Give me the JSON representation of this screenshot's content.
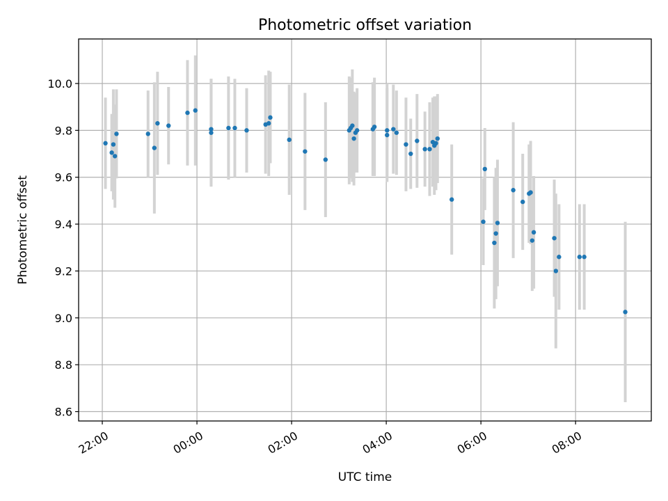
{
  "chart_data": {
    "type": "scatter",
    "title": "Photometric offset variation",
    "xlabel": "UTC time",
    "ylabel": "Photometric offset",
    "x_axis": {
      "kind": "time",
      "ticks": [
        "22:00",
        "00:00",
        "02:00",
        "04:00",
        "06:00",
        "08:00"
      ],
      "tick_hours": [
        22,
        24,
        26,
        28,
        30,
        32
      ],
      "xlim_hours": [
        21.5,
        33.6
      ]
    },
    "ylim": [
      8.56,
      10.19
    ],
    "yticks": [
      8.6,
      8.8,
      9.0,
      9.2,
      9.4,
      9.6,
      9.8,
      10.0
    ],
    "ytick_labels": [
      "8.6",
      "8.8",
      "9.0",
      "9.2",
      "9.4",
      "9.6",
      "9.8",
      "10.0"
    ],
    "grid": true,
    "marker_color": "#1f77b4",
    "errorbar_color": "#d3d3d3",
    "series": [
      {
        "x_time": [
          "22:04",
          "22:12",
          "22:14",
          "22:16",
          "22:18",
          "22:58",
          "23:06",
          "23:10",
          "23:24",
          "23:48",
          "23:58",
          "00:18",
          "00:18",
          "00:40",
          "00:48",
          "01:03",
          "01:27",
          "01:31",
          "01:33",
          "01:57",
          "02:17",
          "02:43",
          "03:13",
          "03:15",
          "03:17",
          "03:19",
          "03:21",
          "03:23",
          "03:43",
          "03:45",
          "04:01",
          "04:01",
          "04:09",
          "04:13",
          "04:25",
          "04:31",
          "04:39",
          "04:49",
          "04:55",
          "04:59",
          "05:01",
          "05:03",
          "05:05",
          "05:23",
          "06:03",
          "06:05",
          "06:17",
          "06:19",
          "06:21",
          "06:41",
          "06:53",
          "07:01",
          "07:03",
          "07:05",
          "07:07",
          "07:33",
          "07:35",
          "07:39",
          "08:05",
          "08:11",
          "09:03"
        ],
        "y": [
          9.745,
          9.705,
          9.74,
          9.69,
          9.785,
          9.785,
          9.725,
          9.83,
          9.82,
          9.875,
          9.885,
          9.805,
          9.79,
          9.81,
          9.81,
          9.8,
          9.825,
          9.83,
          9.855,
          9.76,
          9.71,
          9.675,
          9.8,
          9.81,
          9.82,
          9.765,
          9.79,
          9.8,
          9.805,
          9.815,
          9.8,
          9.78,
          9.805,
          9.79,
          9.74,
          9.7,
          9.755,
          9.72,
          9.72,
          9.75,
          9.735,
          9.745,
          9.765,
          9.505,
          9.41,
          9.635,
          9.32,
          9.36,
          9.405,
          9.545,
          9.495,
          9.53,
          9.535,
          9.33,
          9.365,
          9.34,
          9.2,
          9.26,
          9.26,
          9.26,
          9.025
        ],
        "yerr": [
          0.195,
          0.165,
          0.235,
          0.22,
          0.19,
          0.185,
          0.28,
          0.22,
          0.165,
          0.225,
          0.235,
          0.215,
          0.23,
          0.22,
          0.21,
          0.18,
          0.21,
          0.225,
          0.195,
          0.235,
          0.25,
          0.245,
          0.23,
          0.215,
          0.24,
          0.2,
          0.17,
          0.18,
          0.2,
          0.21,
          0.2,
          0.2,
          0.19,
          0.18,
          0.2,
          0.15,
          0.2,
          0.16,
          0.2,
          0.19,
          0.21,
          0.2,
          0.19,
          0.235,
          0.185,
          0.175,
          0.28,
          0.28,
          0.27,
          0.29,
          0.205,
          0.21,
          0.22,
          0.215,
          0.24,
          0.25,
          0.33,
          0.225,
          0.225,
          0.225,
          0.385
        ]
      }
    ]
  }
}
